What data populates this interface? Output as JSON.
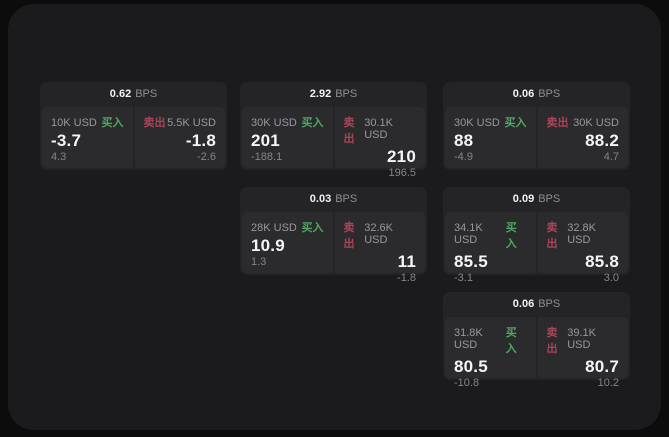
{
  "colors": {
    "page_bg": "#0c0c0d",
    "window_bg": "#1b1b1d",
    "card_bg": "#242427",
    "panel_bg": "#2b2b2e",
    "text_primary": "#f5f5f6",
    "text_secondary": "#8e8e93",
    "buy_green": "#4fa861",
    "sell_red": "#ab4458"
  },
  "labels": {
    "bps_unit": "BPS",
    "buy": "买入",
    "sell": "卖出"
  },
  "cards": [
    {
      "bps": "0.62",
      "buy": {
        "amount": "10K USD",
        "price": "-3.7",
        "delta": "4.3"
      },
      "sell": {
        "amount": "5.5K USD",
        "price": "-1.8",
        "delta": "-2.6"
      }
    },
    {
      "bps": "2.92",
      "buy": {
        "amount": "30K USD",
        "price": "201",
        "delta": "-188.1"
      },
      "sell": {
        "amount": "30.1K USD",
        "price": "210",
        "delta": "196.5"
      }
    },
    {
      "bps": "0.06",
      "buy": {
        "amount": "30K USD",
        "price": "88",
        "delta": "-4.9"
      },
      "sell": {
        "amount": "30K USD",
        "price": "88.2",
        "delta": "4.7"
      }
    },
    {
      "bps": "0.03",
      "buy": {
        "amount": "28K USD",
        "price": "10.9",
        "delta": "1.3"
      },
      "sell": {
        "amount": "32.6K USD",
        "price": "11",
        "delta": "-1.8"
      }
    },
    {
      "bps": "0.09",
      "buy": {
        "amount": "34.1K USD",
        "price": "85.5",
        "delta": "-3.1"
      },
      "sell": {
        "amount": "32.8K USD",
        "price": "85.8",
        "delta": "3.0"
      }
    },
    {
      "bps": "0.06",
      "buy": {
        "amount": "31.8K USD",
        "price": "80.5",
        "delta": "-10.8"
      },
      "sell": {
        "amount": "39.1K USD",
        "price": "80.7",
        "delta": "10.2"
      }
    }
  ]
}
